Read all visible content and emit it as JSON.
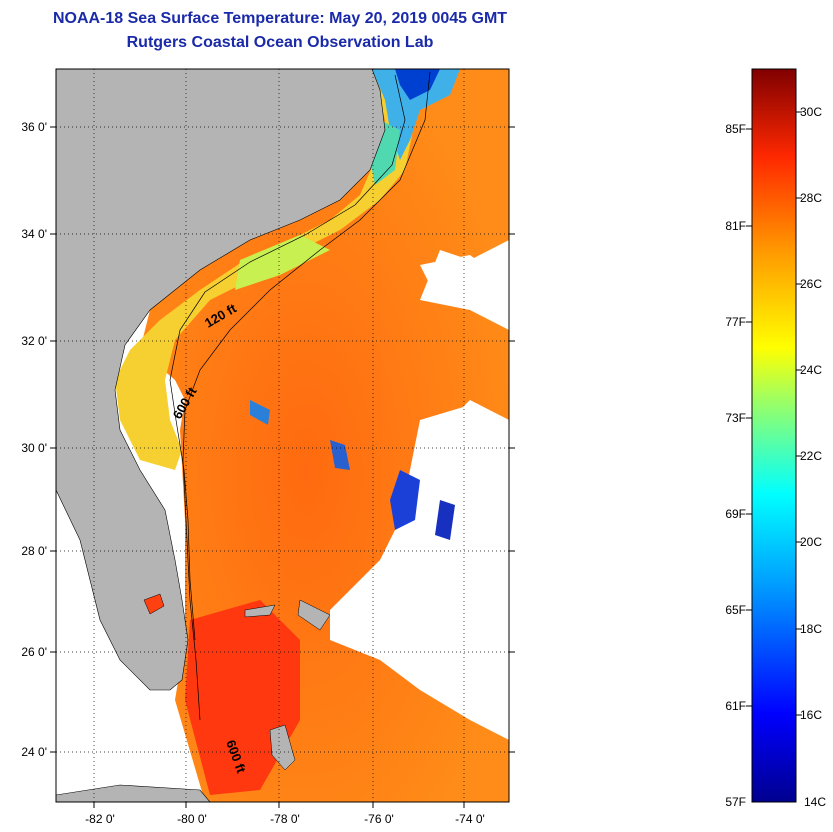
{
  "header": {
    "title": "NOAA-18 Sea Surface Temperature:  May 20, 2019 0045 GMT",
    "subtitle": "Rutgers Coastal Ocean Observation Lab"
  },
  "map": {
    "lat_labels": [
      "36 0'",
      "34 0'",
      "32 0'",
      "30 0'",
      "28 0'",
      "26 0'",
      "24 0'"
    ],
    "lon_labels": [
      "-82 0'",
      "-80 0'",
      "-78 0'",
      "-76 0'",
      "-74 0'"
    ],
    "contours": [
      "120 ft",
      "600 ft",
      "600 ft"
    ],
    "colors": {
      "land": "#b4b4b4",
      "cloud_nodata": "#ffffff"
    }
  },
  "colorbar": {
    "fahrenheit_labels": [
      "85F",
      "81F",
      "77F",
      "73F",
      "69F",
      "65F",
      "61F",
      "57F"
    ],
    "celsius_labels": [
      "30C",
      "28C",
      "26C",
      "24C",
      "22C",
      "20C",
      "18C",
      "16C",
      "14C"
    ],
    "range_celsius": [
      14,
      31
    ]
  }
}
